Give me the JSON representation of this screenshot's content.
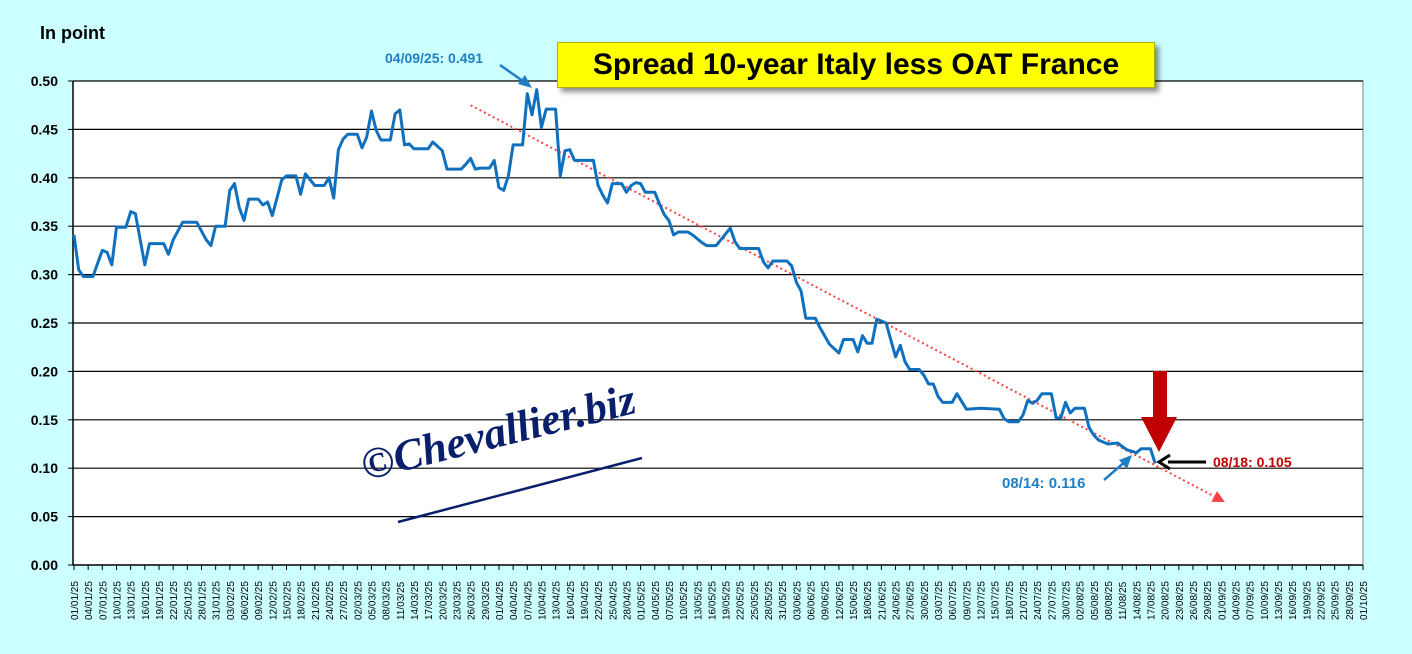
{
  "chart_data": {
    "type": "line",
    "title": "Spread 10-year Italy less OAT France",
    "ylabel": "In point",
    "xlabel": "",
    "ylim": [
      0,
      0.5
    ],
    "y_ticks": [
      "0.00",
      "0.05",
      "0.10",
      "0.15",
      "0.20",
      "0.25",
      "0.30",
      "0.35",
      "0.40",
      "0.45",
      "0.50"
    ],
    "x_range_days": [
      0,
      273
    ],
    "x_start": "01/01/25",
    "x_tick_step_days": 3,
    "x_ticks": [
      "01/01/25",
      "04/01/25",
      "07/01/25",
      "10/01/25",
      "13/01/25",
      "16/01/25",
      "19/01/25",
      "22/01/25",
      "25/01/25",
      "28/01/25",
      "31/01/25",
      "03/02/25",
      "06/02/25",
      "09/02/25",
      "12/02/25",
      "15/02/25",
      "18/02/25",
      "21/02/25",
      "24/02/25",
      "27/02/25",
      "02/03/25",
      "05/03/25",
      "08/03/25",
      "11/03/25",
      "14/03/25",
      "17/03/25",
      "20/03/25",
      "23/03/25",
      "26/03/25",
      "29/03/25",
      "01/04/25",
      "04/04/25",
      "07/04/25",
      "10/04/25",
      "13/04/25",
      "16/04/25",
      "19/04/25",
      "22/04/25",
      "25/04/25",
      "28/04/25",
      "01/05/25",
      "04/05/25",
      "07/05/25",
      "10/05/25",
      "13/05/25",
      "16/05/25",
      "19/05/25",
      "22/05/25",
      "25/05/25",
      "28/05/25",
      "31/05/25",
      "03/06/25",
      "06/06/25",
      "09/06/25",
      "12/06/25",
      "15/06/25",
      "18/06/25",
      "21/06/25",
      "24/06/25",
      "27/06/25",
      "30/06/25",
      "03/07/25",
      "06/07/25",
      "09/07/25",
      "12/07/25",
      "15/07/25",
      "18/07/25",
      "21/07/25",
      "24/07/25",
      "27/07/25",
      "30/07/25",
      "02/08/25",
      "05/08/25",
      "08/08/25",
      "11/08/25",
      "14/08/25",
      "17/08/25",
      "20/08/25",
      "23/08/25",
      "26/08/25",
      "29/08/25",
      "01/09/25",
      "04/09/25",
      "07/09/25",
      "10/09/25",
      "13/09/25",
      "16/09/25",
      "19/09/25",
      "22/09/25",
      "25/09/25",
      "28/09/25",
      "01/10/25"
    ],
    "grid": true,
    "series": [
      {
        "name": "Spread 10-year Italy less OAT France",
        "color": "#1070c0",
        "points": [
          [
            0,
            0.341
          ],
          [
            1,
            0.305
          ],
          [
            2,
            0.298
          ],
          [
            4,
            0.298
          ],
          [
            6,
            0.325
          ],
          [
            7,
            0.323
          ],
          [
            8,
            0.31
          ],
          [
            9,
            0.349
          ],
          [
            11,
            0.349
          ],
          [
            12,
            0.365
          ],
          [
            13,
            0.363
          ],
          [
            15,
            0.31
          ],
          [
            16,
            0.332
          ],
          [
            19,
            0.332
          ],
          [
            20,
            0.321
          ],
          [
            21,
            0.336
          ],
          [
            23,
            0.354
          ],
          [
            26,
            0.354
          ],
          [
            28,
            0.336
          ],
          [
            29,
            0.33
          ],
          [
            30,
            0.35
          ],
          [
            32,
            0.35
          ],
          [
            33,
            0.387
          ],
          [
            34,
            0.394
          ],
          [
            35,
            0.369
          ],
          [
            36,
            0.356
          ],
          [
            37,
            0.378
          ],
          [
            39,
            0.378
          ],
          [
            40,
            0.372
          ],
          [
            41,
            0.375
          ],
          [
            42,
            0.361
          ],
          [
            44,
            0.398
          ],
          [
            45,
            0.402
          ],
          [
            47,
            0.402
          ],
          [
            48,
            0.383
          ],
          [
            49,
            0.404
          ],
          [
            51,
            0.392
          ],
          [
            53,
            0.392
          ],
          [
            54,
            0.4
          ],
          [
            55,
            0.379
          ],
          [
            56,
            0.429
          ],
          [
            57,
            0.44
          ],
          [
            58,
            0.445
          ],
          [
            60,
            0.445
          ],
          [
            61,
            0.431
          ],
          [
            62,
            0.442
          ],
          [
            63,
            0.469
          ],
          [
            64,
            0.449
          ],
          [
            65,
            0.439
          ],
          [
            67,
            0.439
          ],
          [
            68,
            0.466
          ],
          [
            69,
            0.47
          ],
          [
            70,
            0.434
          ],
          [
            71,
            0.435
          ],
          [
            72,
            0.43
          ],
          [
            75,
            0.43
          ],
          [
            76,
            0.437
          ],
          [
            78,
            0.428
          ],
          [
            79,
            0.409
          ],
          [
            82,
            0.409
          ],
          [
            83,
            0.414
          ],
          [
            84,
            0.42
          ],
          [
            85,
            0.409
          ],
          [
            86,
            0.41
          ],
          [
            88,
            0.41
          ],
          [
            89,
            0.418
          ],
          [
            90,
            0.39
          ],
          [
            91,
            0.387
          ],
          [
            92,
            0.402
          ],
          [
            93,
            0.434
          ],
          [
            95,
            0.434
          ],
          [
            96,
            0.487
          ],
          [
            97,
            0.465
          ],
          [
            98,
            0.491
          ],
          [
            99,
            0.452
          ],
          [
            100,
            0.471
          ],
          [
            102,
            0.471
          ],
          [
            103,
            0.402
          ],
          [
            104,
            0.428
          ],
          [
            105,
            0.429
          ],
          [
            106,
            0.418
          ],
          [
            110,
            0.418
          ],
          [
            111,
            0.392
          ],
          [
            112,
            0.382
          ],
          [
            113,
            0.374
          ],
          [
            114,
            0.394
          ],
          [
            116,
            0.394
          ],
          [
            117,
            0.385
          ],
          [
            118,
            0.392
          ],
          [
            119,
            0.395
          ],
          [
            120,
            0.394
          ],
          [
            121,
            0.385
          ],
          [
            123,
            0.385
          ],
          [
            124,
            0.373
          ],
          [
            125,
            0.362
          ],
          [
            126,
            0.356
          ],
          [
            127,
            0.341
          ],
          [
            128,
            0.344
          ],
          [
            130,
            0.344
          ],
          [
            131,
            0.341
          ],
          [
            133,
            0.333
          ],
          [
            134,
            0.33
          ],
          [
            136,
            0.33
          ],
          [
            137,
            0.336
          ],
          [
            139,
            0.348
          ],
          [
            140,
            0.334
          ],
          [
            141,
            0.327
          ],
          [
            145,
            0.327
          ],
          [
            146,
            0.313
          ],
          [
            147,
            0.307
          ],
          [
            148,
            0.314
          ],
          [
            151,
            0.314
          ],
          [
            152,
            0.309
          ],
          [
            153,
            0.292
          ],
          [
            154,
            0.283
          ],
          [
            155,
            0.255
          ],
          [
            157,
            0.255
          ],
          [
            158,
            0.245
          ],
          [
            160,
            0.228
          ],
          [
            162,
            0.219
          ],
          [
            163,
            0.233
          ],
          [
            165,
            0.233
          ],
          [
            166,
            0.22
          ],
          [
            167,
            0.237
          ],
          [
            168,
            0.229
          ],
          [
            169,
            0.229
          ],
          [
            170,
            0.254
          ],
          [
            172,
            0.25
          ],
          [
            174,
            0.215
          ],
          [
            175,
            0.227
          ],
          [
            176,
            0.21
          ],
          [
            177,
            0.202
          ],
          [
            179,
            0.202
          ],
          [
            180,
            0.196
          ],
          [
            181,
            0.187
          ],
          [
            182,
            0.187
          ],
          [
            183,
            0.174
          ],
          [
            184,
            0.168
          ],
          [
            186,
            0.168
          ],
          [
            187,
            0.177
          ],
          [
            189,
            0.161
          ],
          [
            192,
            0.162
          ],
          [
            196,
            0.161
          ],
          [
            197,
            0.151
          ],
          [
            198,
            0.148
          ],
          [
            200,
            0.148
          ],
          [
            201,
            0.155
          ],
          [
            202,
            0.17
          ],
          [
            203,
            0.167
          ],
          [
            204,
            0.17
          ],
          [
            205,
            0.177
          ],
          [
            207,
            0.177
          ],
          [
            208,
            0.152
          ],
          [
            209,
            0.152
          ],
          [
            210,
            0.168
          ],
          [
            211,
            0.157
          ],
          [
            212,
            0.162
          ],
          [
            214,
            0.162
          ],
          [
            215,
            0.142
          ],
          [
            216,
            0.134
          ],
          [
            217,
            0.129
          ],
          [
            219,
            0.125
          ],
          [
            221,
            0.126
          ],
          [
            223,
            0.119
          ],
          [
            225,
            0.116
          ],
          [
            226,
            0.12
          ],
          [
            228,
            0.12
          ],
          [
            229,
            0.105
          ]
        ]
      }
    ],
    "trendline": {
      "color": "#ff4040",
      "from": [
        84,
        0.475
      ],
      "to": [
        243,
        0.067
      ]
    },
    "annotations": {
      "peak": "04/09/25: 0.491",
      "aug14": "08/14: 0.116",
      "aug18": "08/18: 0.105"
    }
  },
  "watermark": "©Chevallier.biz",
  "colors": {
    "background": "#ccffff",
    "line": "#1070c0",
    "highlight": "#c00000",
    "title_bg": "#ffff00"
  }
}
